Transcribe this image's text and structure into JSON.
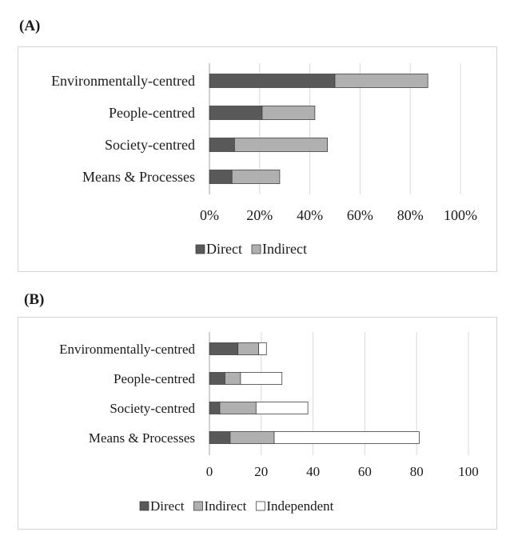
{
  "panels": {
    "a_label": "(A)",
    "b_label": "(B)"
  },
  "colors": {
    "direct": "#595959",
    "indirect": "#b0b0b0",
    "independent": "#ffffff",
    "outline": "#404040",
    "grid": "#d9d9d9"
  },
  "chart_data": [
    {
      "type": "bar",
      "orientation": "horizontal",
      "stacked": true,
      "title": "(A)",
      "categories": [
        "Environmentally-centred",
        "People-centred",
        "Society-centred",
        "Means & Processes"
      ],
      "series": [
        {
          "name": "Direct",
          "values": [
            50,
            21,
            10,
            9
          ]
        },
        {
          "name": "Indirect",
          "values": [
            37,
            21,
            37,
            19
          ]
        }
      ],
      "xlim": [
        0,
        100
      ],
      "xticks": [
        "0%",
        "20%",
        "40%",
        "60%",
        "80%",
        "100%"
      ],
      "grid": true,
      "legend": "bottom"
    },
    {
      "type": "bar",
      "orientation": "horizontal",
      "stacked": true,
      "title": "(B)",
      "categories": [
        "Environmentally-centred",
        "People-centred",
        "Society-centred",
        "Means & Processes"
      ],
      "series": [
        {
          "name": "Direct",
          "values": [
            11,
            6,
            4,
            8
          ]
        },
        {
          "name": "Indirect",
          "values": [
            8,
            6,
            14,
            17
          ]
        },
        {
          "name": "Independent",
          "values": [
            3,
            16,
            20,
            56
          ]
        }
      ],
      "xlim": [
        0,
        100
      ],
      "xticks": [
        "0",
        "20",
        "40",
        "60",
        "80",
        "100"
      ],
      "grid": true,
      "legend": "bottom"
    }
  ]
}
